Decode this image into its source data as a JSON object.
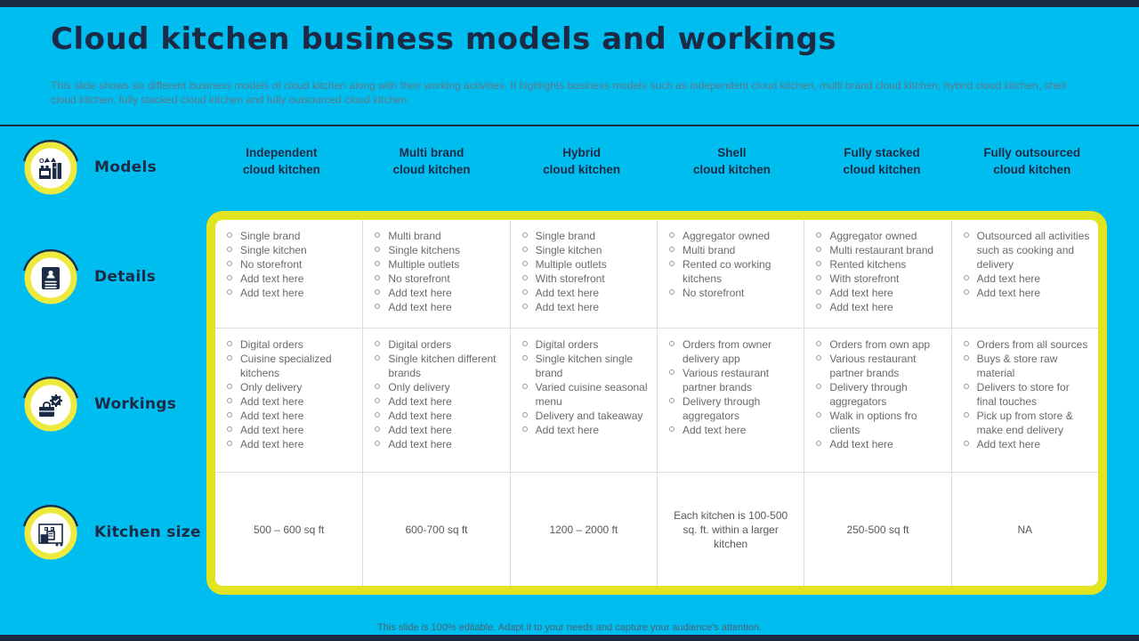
{
  "slide": {
    "title": "Cloud kitchen business models and workings",
    "subtitle": "This slide shows six different business models of cloud kitchen along with their working activities. It highlights business models such as independent cloud kitchen, multi brand cloud kitchen, hybrid cloud kitchen, shell cloud kitchen, fully stacked cloud kitchen and fully outsourced cloud kitchen.",
    "footer": "This slide is 100% editable. Adapt it to your needs and capture your audience's attention."
  },
  "colors": {
    "background": "#00BDF0",
    "navy": "#1C2B45",
    "table_border_yellow": "#E2E41F",
    "icon_ring_yellow": "#EDE93F",
    "subtitle_gray": "#647687",
    "cell_text_gray": "#6A6A6A",
    "cell_divider_gray": "#DCDCDC"
  },
  "row_labels": [
    {
      "label": "Models",
      "icon": "kitchen-stove-icon"
    },
    {
      "label": "Details",
      "icon": "resume-document-icon"
    },
    {
      "label": "Workings",
      "icon": "toolbox-gear-icon"
    },
    {
      "label": "Kitchen size",
      "icon": "kitchen-appliance-icon"
    }
  ],
  "columns": [
    {
      "header_line1": "Independent",
      "header_line2": "cloud kitchen",
      "details": [
        "Single brand",
        "Single kitchen",
        "No storefront",
        "Add text here",
        "Add text here"
      ],
      "workings": [
        "Digital orders",
        "Cuisine specialized kitchens",
        "Only delivery",
        "Add text here",
        "Add text here",
        "Add text here",
        "Add text here"
      ],
      "kitchen_size": "500 – 600 sq ft"
    },
    {
      "header_line1": "Multi brand",
      "header_line2": "cloud kitchen",
      "details": [
        "Multi brand",
        "Single kitchens",
        "Multiple outlets",
        "No storefront",
        "Add text here",
        "Add text here"
      ],
      "workings": [
        "Digital orders",
        "Single kitchen different brands",
        "Only delivery",
        "Add text here",
        "Add text here",
        "Add text here",
        "Add text here"
      ],
      "kitchen_size": "600-700 sq ft"
    },
    {
      "header_line1": "Hybrid",
      "header_line2": "cloud kitchen",
      "details": [
        "Single brand",
        "Single kitchen",
        "Multiple outlets",
        "With storefront",
        "Add text here",
        "Add text here"
      ],
      "workings": [
        "Digital orders",
        "Single kitchen single brand",
        "Varied cuisine seasonal menu",
        "Delivery and takeaway",
        "Add text here"
      ],
      "kitchen_size": "1200 – 2000 ft"
    },
    {
      "header_line1": "Shell",
      "header_line2": "cloud kitchen",
      "details": [
        "Aggregator owned",
        "Multi brand",
        "Rented co working kitchens",
        "No storefront"
      ],
      "workings": [
        "Orders from owner delivery app",
        "Various restaurant partner brands",
        "Delivery through aggregators",
        "Add text here"
      ],
      "kitchen_size": "Each kitchen is 100-500 sq. ft. within a larger kitchen"
    },
    {
      "header_line1": "Fully stacked",
      "header_line2": "cloud kitchen",
      "details": [
        "Aggregator owned",
        "Multi restaurant brand",
        "Rented kitchens",
        "With storefront",
        "Add text here",
        "Add text here"
      ],
      "workings": [
        "Orders from own app",
        "Various restaurant partner brands",
        "Delivery through aggregators",
        "Walk in options fro clients",
        "Add text here"
      ],
      "kitchen_size": "250-500 sq ft"
    },
    {
      "header_line1": "Fully outsourced",
      "header_line2": "cloud kitchen",
      "details": [
        "Outsourced all activities such as cooking and delivery",
        "Add text here",
        "Add text here"
      ],
      "workings": [
        "Orders from all sources",
        "Buys & store raw material",
        "Delivers to store for final touches",
        "Pick up from store & make end delivery",
        "Add text here"
      ],
      "kitchen_size": "NA"
    }
  ]
}
